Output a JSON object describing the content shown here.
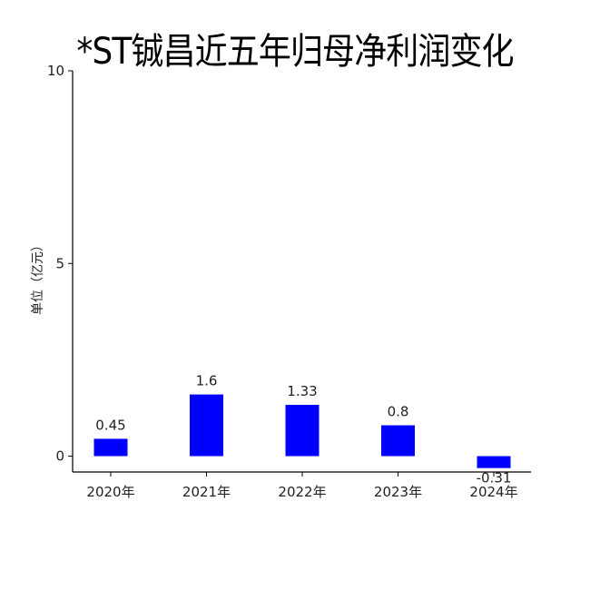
{
  "chart_data": {
    "type": "bar",
    "title": "*ST铖昌近五年归母净利润变化",
    "ylabel": "单位（亿元）",
    "xlabel": "",
    "categories": [
      "2020年",
      "2021年",
      "2022年",
      "2023年",
      "2024年"
    ],
    "values": [
      0.45,
      1.6,
      1.33,
      0.8,
      -0.31
    ],
    "value_labels": [
      "0.45",
      "1.6",
      "1.33",
      "0.8",
      "-0.31"
    ],
    "ylim": [
      -0.4,
      10
    ],
    "yticks": [
      0,
      5,
      10
    ],
    "ytick_labels": [
      "0",
      "5",
      "10"
    ],
    "bar_color": "#0000ff",
    "grid": false,
    "legend": "none"
  }
}
